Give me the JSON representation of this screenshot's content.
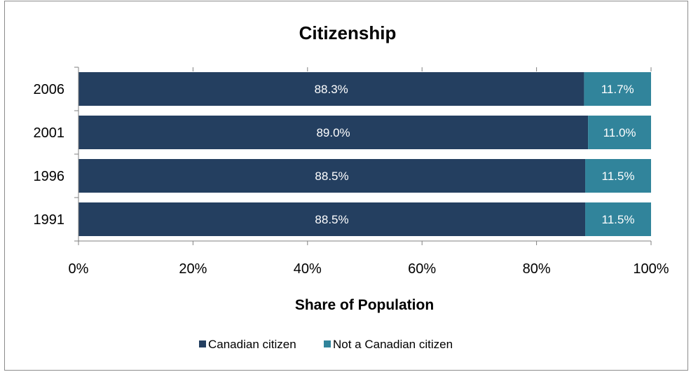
{
  "chart_data": {
    "type": "bar",
    "orientation": "horizontal",
    "stacked": true,
    "title": "Citizenship",
    "xlabel": "Share of Population",
    "ylabel": "",
    "categories": [
      "2006",
      "2001",
      "1996",
      "1991"
    ],
    "series": [
      {
        "name": "Canadian citizen",
        "color": "#243f60",
        "values": [
          88.3,
          89.0,
          88.5,
          88.5
        ],
        "labels": [
          "88.3%",
          "89.0%",
          "88.5%",
          "88.5%"
        ]
      },
      {
        "name": "Not a Canadian citizen",
        "color": "#31849b",
        "values": [
          11.7,
          11.0,
          11.5,
          11.5
        ],
        "labels": [
          "11.7%",
          "11.0%",
          "11.5%",
          "11.5%"
        ]
      }
    ],
    "xlim": [
      0,
      100
    ],
    "xticks": [
      0,
      20,
      40,
      60,
      80,
      100
    ],
    "xtick_labels": [
      "0%",
      "20%",
      "40%",
      "60%",
      "80%",
      "100%"
    ],
    "grid": false,
    "legend": "bottom"
  }
}
